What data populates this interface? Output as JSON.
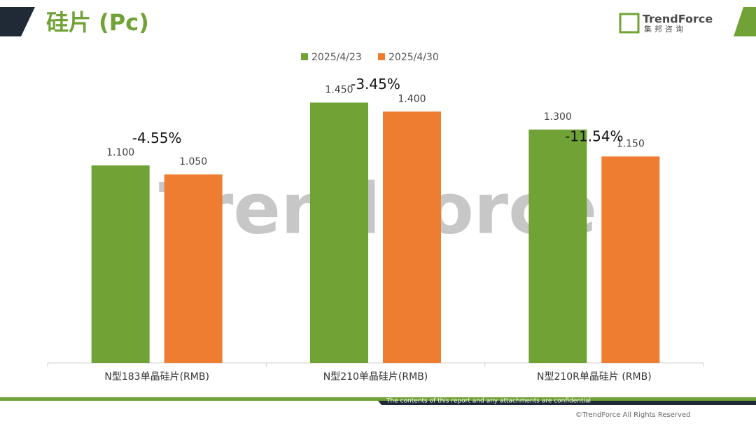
{
  "header": {
    "title": "硅片 (Pc)",
    "logo": "TrendForce",
    "logo_sub": "集邦咨询"
  },
  "chart_data": {
    "type": "bar",
    "categories": [
      "N型183单晶硅片(RMB)",
      "N型210单晶硅片(RMB)",
      "N型210R单晶硅片 (RMB)"
    ],
    "series": [
      {
        "name": "2025/4/23",
        "color": "#70a235",
        "values": [
          1.1,
          1.45,
          1.3
        ],
        "value_labels": [
          "1.100",
          "1.450",
          "1.300"
        ]
      },
      {
        "name": "2025/4/30",
        "color": "#ee7d31",
        "values": [
          1.05,
          1.4,
          1.15
        ],
        "value_labels": [
          "1.050",
          "1.400",
          "1.150"
        ]
      }
    ],
    "annotations": [
      "-4.55%",
      "-3.45%",
      "-11.54%"
    ],
    "ylim": [
      0,
      1.6
    ],
    "legend": "top"
  },
  "watermark": "TrendForce",
  "footer": {
    "notice": "The contents of this report and any attachments are confidential",
    "copyright": "©TrendForce All Rights Reserved"
  }
}
